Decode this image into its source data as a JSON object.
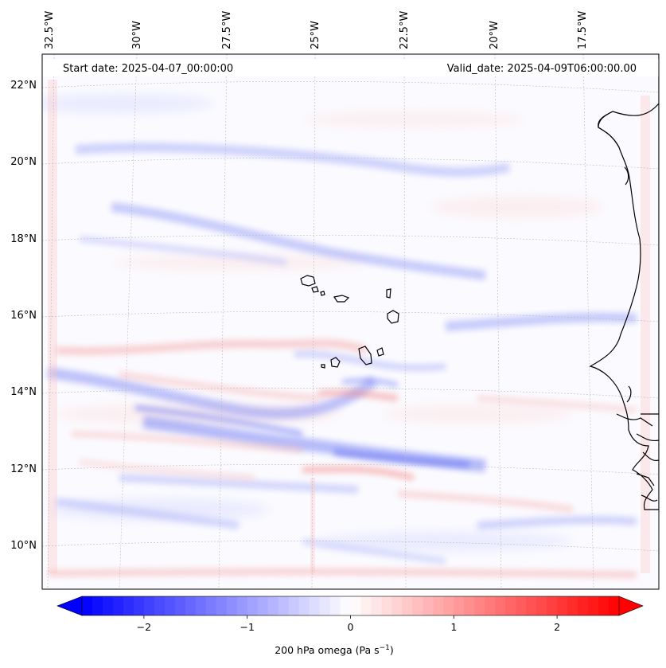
{
  "map": {
    "projection_note": "Lambert-like regional map, Cape Verde / West Africa",
    "start_date": "Start date: 2025-04-07_00:00:00",
    "valid_date": "Valid_date: 2025-04-09T06:00:00.00",
    "lon_labels": [
      "32.5°W",
      "30°W",
      "27.5°W",
      "25°W",
      "22.5°W",
      "20°W",
      "17.5°W"
    ],
    "lat_labels": [
      "22°N",
      "20°N",
      "18°N",
      "16°N",
      "14°N",
      "12°N",
      "10°N"
    ]
  },
  "colorbar": {
    "title": "200 hPa omega (Pa s",
    "title_sup": "−1",
    "title_end": ")",
    "ticks": [
      "−2",
      "−1",
      "0",
      "1",
      "2"
    ],
    "tick_values": [
      -2,
      -1,
      0,
      1,
      2
    ],
    "vmin": -2.6,
    "vmax": 2.6,
    "cmap": "bwr",
    "low_color": "#0000ff",
    "mid_color": "#ffffff",
    "high_color": "#ff0000"
  },
  "colors": {
    "coast": "#000000",
    "grid": "#bbbbbb",
    "blue_band": "#7b86f5",
    "red_band": "#f37f7f"
  }
}
